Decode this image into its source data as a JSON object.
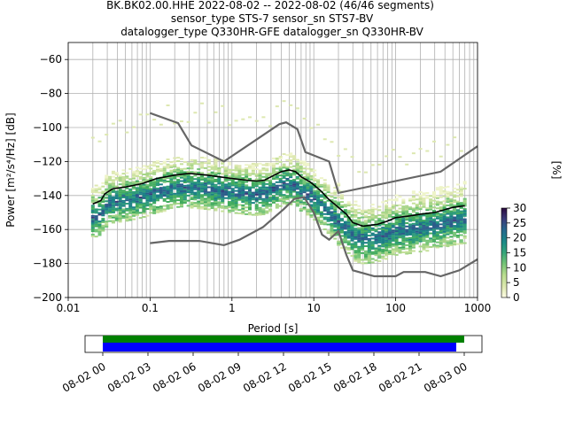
{
  "chart_data": [
    {
      "type": "heatmap",
      "title_lines": [
        "BK.BK02.00.HHE   2022-08-02 -- 2022-08-02  (46/46 segments)",
        "sensor_type STS-7 sensor_sn STS7-BV",
        "datalogger_type Q330HR-GFE datalogger_sn Q330HR-BV"
      ],
      "xlabel": "Period [s]",
      "ylabel": "Power [m²/s⁴/Hz] [dB]",
      "xscale": "log",
      "xlim": [
        0.01,
        1000
      ],
      "ylim": [
        -200,
        -50
      ],
      "x_ticks": [
        0.01,
        0.1,
        1,
        10,
        100,
        1000
      ],
      "x_tick_labels": [
        "0.01",
        "0.1",
        "1",
        "10",
        "100",
        "1000"
      ],
      "y_ticks": [
        -200,
        -180,
        -160,
        -140,
        -120,
        -100,
        -80,
        -60
      ],
      "y_tick_labels": [
        "−200",
        "−180",
        "−160",
        "−140",
        "−120",
        "−100",
        "−80",
        "−60"
      ],
      "grid": true,
      "colorbar": {
        "label": "[%]",
        "range": [
          0,
          30
        ],
        "ticks": [
          0,
          5,
          10,
          15,
          20,
          25,
          30
        ]
      },
      "colors": {
        "nlnm_nhnm": "#666666",
        "mode": "#000000",
        "grid": "#b0b0b0"
      },
      "series": [
        {
          "key": "nhnm",
          "values": [
            [
              0.1,
              -91.5
            ],
            [
              0.22,
              -97.4
            ],
            [
              0.32,
              -110.5
            ],
            [
              0.8,
              -120
            ],
            [
              3.8,
              -98
            ],
            [
              4.6,
              -97
            ],
            [
              6.3,
              -101
            ],
            [
              7.9,
              -114.5
            ],
            [
              15.4,
              -120
            ],
            [
              20,
              -138.5
            ],
            [
              354.8,
              -126
            ],
            [
              1000,
              -111
            ]
          ]
        },
        {
          "key": "nlnm",
          "values": [
            [
              0.1,
              -168
            ],
            [
              0.17,
              -166.7
            ],
            [
              0.4,
              -166.7
            ],
            [
              0.8,
              -169.2
            ],
            [
              1.24,
              -166
            ],
            [
              2.4,
              -158.6
            ],
            [
              4.3,
              -148
            ],
            [
              5.8,
              -142
            ],
            [
              7.6,
              -141
            ],
            [
              10,
              -150
            ],
            [
              12.6,
              -163
            ],
            [
              15.4,
              -166
            ],
            [
              20,
              -161
            ],
            [
              25,
              -175
            ],
            [
              30,
              -184
            ],
            [
              55,
              -187.5
            ],
            [
              100,
              -187.5
            ],
            [
              125,
              -185
            ],
            [
              230,
              -185
            ],
            [
              354.8,
              -187.5
            ],
            [
              600,
              -184
            ],
            [
              1000,
              -177.5
            ]
          ]
        },
        {
          "key": "mode",
          "values": [
            [
              0.02,
              -145
            ],
            [
              0.025,
              -143
            ],
            [
              0.028,
              -139
            ],
            [
              0.035,
              -136
            ],
            [
              0.05,
              -135
            ],
            [
              0.08,
              -133
            ],
            [
              0.12,
              -130
            ],
            [
              0.2,
              -128
            ],
            [
              0.3,
              -127
            ],
            [
              0.5,
              -128
            ],
            [
              0.7,
              -129
            ],
            [
              1,
              -130
            ],
            [
              1.5,
              -131
            ],
            [
              2,
              -131.5
            ],
            [
              2.5,
              -131
            ],
            [
              3,
              -129
            ],
            [
              4,
              -126
            ],
            [
              5,
              -125
            ],
            [
              6,
              -126
            ],
            [
              7,
              -129
            ],
            [
              9,
              -132
            ],
            [
              12,
              -137
            ],
            [
              15,
              -142
            ],
            [
              20,
              -147
            ],
            [
              25,
              -151
            ],
            [
              30,
              -156
            ],
            [
              40,
              -158
            ],
            [
              60,
              -157
            ],
            [
              80,
              -155
            ],
            [
              100,
              -153
            ],
            [
              150,
              -152
            ],
            [
              200,
              -151
            ],
            [
              300,
              -150
            ],
            [
              500,
              -147
            ],
            [
              700,
              -146
            ]
          ]
        }
      ]
    },
    {
      "type": "timeline",
      "x_tick_labels": [
        "08-02 00",
        "08-02 03",
        "08-02 06",
        "08-02 09",
        "08-02 12",
        "08-02 15",
        "08-02 18",
        "08-02 21",
        "08-03 00"
      ],
      "colors": {
        "upper": "#008000",
        "lower": "#0000ff"
      }
    }
  ]
}
